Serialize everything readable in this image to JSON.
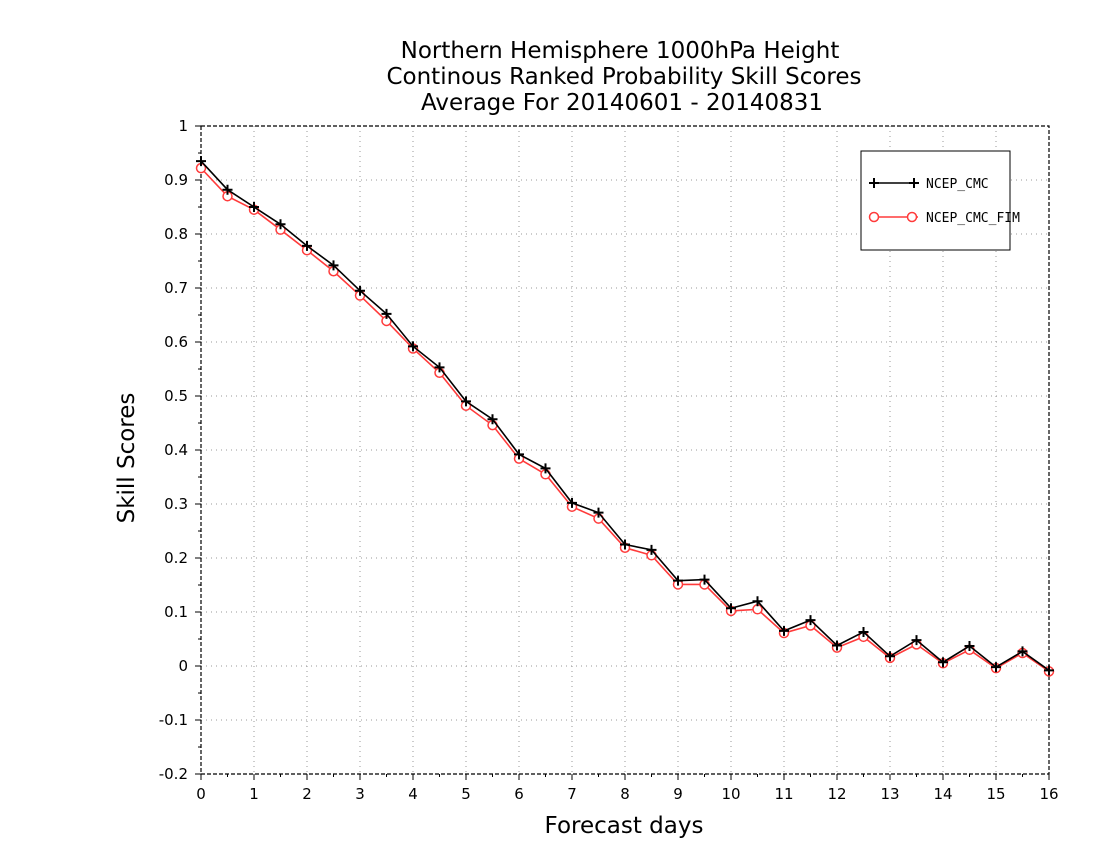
{
  "chart_data": {
    "type": "line",
    "title": [
      "Northern Hemisphere 1000hPa Height",
      "Continous Ranked Probability Skill Scores",
      "Average For 20140601 - 20140831"
    ],
    "xlabel": "Forecast days",
    "ylabel": "Skill Scores",
    "xlim": [
      0,
      16
    ],
    "ylim": [
      -0.2,
      1
    ],
    "xticks": [
      0,
      1,
      2,
      3,
      4,
      5,
      6,
      7,
      8,
      9,
      10,
      11,
      12,
      13,
      14,
      15,
      16
    ],
    "yticks": [
      -0.2,
      -0.1,
      0,
      0.1,
      0.2,
      0.3,
      0.4,
      0.5,
      0.6,
      0.7,
      0.8,
      0.9,
      1
    ],
    "ytick_labels": [
      "-0.2",
      "-0.1",
      "0",
      "0.1",
      "0.2",
      "0.3",
      "0.4",
      "0.5",
      "0.6",
      "0.7",
      "0.8",
      "0.9",
      "1"
    ],
    "grid": true,
    "legend_position": "top-right",
    "x": [
      0,
      0.5,
      1,
      1.5,
      2,
      2.5,
      3,
      3.5,
      4,
      4.5,
      5,
      5.5,
      6,
      6.5,
      7,
      7.5,
      8,
      8.5,
      9,
      9.5,
      10,
      10.5,
      11,
      11.5,
      12,
      12.5,
      13,
      13.5,
      14,
      14.5,
      15,
      15.5,
      16
    ],
    "series": [
      {
        "name": "NCEP_CMC",
        "color": "#000000",
        "marker": "plus",
        "values": [
          0.935,
          0.882,
          0.85,
          0.818,
          0.778,
          0.742,
          0.695,
          0.652,
          0.592,
          0.553,
          0.49,
          0.457,
          0.392,
          0.366,
          0.302,
          0.284,
          0.225,
          0.215,
          0.158,
          0.16,
          0.107,
          0.12,
          0.065,
          0.085,
          0.038,
          0.063,
          0.018,
          0.048,
          0.007,
          0.037,
          -0.002,
          0.027,
          -0.008
        ]
      },
      {
        "name": "NCEP_CMC_FIM",
        "color": "#ff3b3b",
        "marker": "circle",
        "values": [
          0.922,
          0.87,
          0.845,
          0.808,
          0.77,
          0.731,
          0.686,
          0.639,
          0.588,
          0.543,
          0.482,
          0.446,
          0.384,
          0.355,
          0.295,
          0.273,
          0.219,
          0.205,
          0.151,
          0.151,
          0.102,
          0.105,
          0.061,
          0.075,
          0.034,
          0.054,
          0.015,
          0.04,
          0.005,
          0.03,
          -0.004,
          0.024,
          -0.01
        ]
      }
    ]
  }
}
